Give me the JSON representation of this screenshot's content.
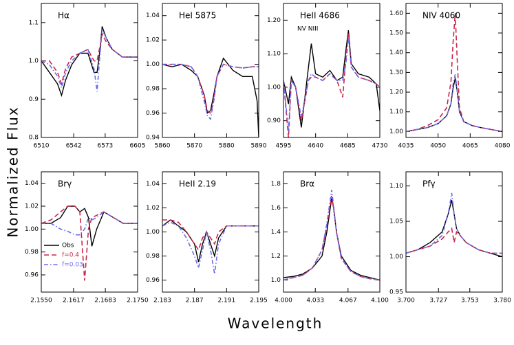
{
  "ylabel": "Normalized Flux",
  "xlabel": "Wavelength",
  "chart_data": [
    {
      "type": "line",
      "title": "Hα",
      "xlim": [
        6510,
        6605
      ],
      "xticks": [
        6510,
        6542,
        6573,
        6605
      ],
      "ylim": [
        0.8,
        1.15
      ],
      "yticks": [
        0.8,
        0.9,
        {
          "value": 1,
          "label": "1.0"
        },
        1.1
      ],
      "x": [
        6510,
        6518,
        6526,
        6530,
        6534,
        6540,
        6548,
        6556,
        6562,
        6565,
        6568,
        6570,
        6574,
        6580,
        6590,
        6605
      ],
      "series": [
        {
          "color": "#000000",
          "dash": "solid",
          "values": [
            1.0,
            0.97,
            0.94,
            0.91,
            0.95,
            0.99,
            1.02,
            1.02,
            0.97,
            0.97,
            1.03,
            1.09,
            1.06,
            1.03,
            1.01,
            1.01
          ]
        },
        {
          "color": "#c8254a",
          "dash": "dashed",
          "values": [
            1.0,
            1.0,
            0.97,
            0.94,
            0.98,
            1.01,
            1.02,
            1.03,
            1.0,
            1.0,
            1.04,
            1.07,
            1.05,
            1.03,
            1.01,
            1.01
          ]
        },
        {
          "color": "#6b6bef",
          "dash": "dashdot",
          "values": [
            1.0,
            0.99,
            0.96,
            0.93,
            0.97,
            1.0,
            1.02,
            1.03,
            0.98,
            0.92,
            1.02,
            1.08,
            1.06,
            1.03,
            1.01,
            1.01
          ]
        }
      ]
    },
    {
      "type": "line",
      "title": "HeI 5875",
      "xlim": [
        5860,
        5890
      ],
      "xticks": [
        5860,
        5870,
        5880,
        5890
      ],
      "ylim": [
        0.94,
        1.05
      ],
      "yticks": [
        0.94,
        0.96,
        0.98,
        {
          "value": 1,
          "label": "1.00"
        },
        1.02,
        1.04
      ],
      "x": [
        5860,
        5863,
        5866,
        5869,
        5871,
        5873,
        5874,
        5875,
        5876,
        5877,
        5879,
        5882,
        5885,
        5888,
        5889.5,
        5890
      ],
      "series": [
        {
          "color": "#000000",
          "dash": "solid",
          "values": [
            1.0,
            0.998,
            1.0,
            0.995,
            0.99,
            0.975,
            0.96,
            0.962,
            0.975,
            0.99,
            1.005,
            0.995,
            0.99,
            0.99,
            0.97,
            0.94
          ]
        },
        {
          "color": "#c8254a",
          "dash": "dashed",
          "values": [
            1.0,
            1.0,
            1.0,
            0.998,
            0.99,
            0.975,
            0.962,
            0.96,
            0.97,
            0.99,
            1.0,
            0.998,
            0.997,
            0.998,
            0.998,
            0.998
          ]
        },
        {
          "color": "#6b6bef",
          "dash": "dashdot",
          "values": [
            1.0,
            1.0,
            1.0,
            0.998,
            0.99,
            0.97,
            0.958,
            0.955,
            0.97,
            0.99,
            1.0,
            0.998,
            0.997,
            0.998,
            0.998,
            0.998
          ]
        }
      ]
    },
    {
      "type": "line",
      "title": "HeII 4686",
      "annotation": "NV NIII",
      "xlim": [
        4595,
        4730
      ],
      "xticks": [
        4595,
        4640,
        4685,
        4730
      ],
      "ylim": [
        0.85,
        1.25
      ],
      "yticks": [
        {
          "value": 0.9,
          "label": "0.90"
        },
        {
          "value": 1,
          "label": "1.00"
        },
        {
          "value": 1.1,
          "label": "1.10"
        },
        {
          "value": 1.2,
          "label": "1.20"
        }
      ],
      "x": [
        4595,
        4602,
        4606,
        4612,
        4620,
        4630,
        4634,
        4640,
        4650,
        4660,
        4670,
        4678,
        4683,
        4686,
        4690,
        4700,
        4715,
        4725,
        4730
      ],
      "series": [
        {
          "color": "#000000",
          "dash": "solid",
          "values": [
            1.02,
            0.95,
            1.03,
            1.0,
            0.88,
            1.06,
            1.13,
            1.04,
            1.03,
            1.05,
            1.02,
            1.03,
            1.12,
            1.17,
            1.07,
            1.04,
            1.03,
            1.01,
            0.93
          ]
        },
        {
          "color": "#c8254a",
          "dash": "dashed",
          "values": [
            1.02,
            0.85,
            1.02,
            1.0,
            0.9,
            1.02,
            1.03,
            1.03,
            1.02,
            1.04,
            1.02,
            0.97,
            1.1,
            1.16,
            1.06,
            1.03,
            1.02,
            1.01,
            1.0
          ]
        },
        {
          "color": "#6b6bef",
          "dash": "dashdot",
          "values": [
            1.02,
            0.87,
            1.02,
            1.0,
            0.91,
            1.02,
            1.04,
            1.03,
            1.02,
            1.04,
            1.02,
            1.02,
            1.08,
            1.15,
            1.06,
            1.03,
            1.02,
            1.01,
            1.0
          ]
        }
      ]
    },
    {
      "type": "line",
      "title": "NIV 4060",
      "xlim": [
        4035,
        4080
      ],
      "xticks": [
        4035,
        4050,
        4065,
        4080
      ],
      "ylim": [
        0.97,
        1.65
      ],
      "yticks": [
        {
          "value": 1,
          "label": "1.00"
        },
        {
          "value": 1.1,
          "label": "1.10"
        },
        {
          "value": 1.2,
          "label": "1.20"
        },
        {
          "value": 1.3,
          "label": "1.30"
        },
        {
          "value": 1.4,
          "label": "1.40"
        },
        {
          "value": 1.5,
          "label": "1.50"
        },
        {
          "value": 1.6,
          "label": "1.60"
        }
      ],
      "x": [
        4035,
        4040,
        4045,
        4050,
        4054,
        4056,
        4057,
        4058,
        4059,
        4060,
        4062,
        4066,
        4070,
        4075,
        4080
      ],
      "series": [
        {
          "color": "#000000",
          "dash": "solid",
          "values": [
            1.0,
            1.01,
            1.02,
            1.04,
            1.08,
            1.14,
            1.22,
            1.27,
            1.2,
            1.1,
            1.05,
            1.03,
            1.02,
            1.01,
            1.0
          ]
        },
        {
          "color": "#c8254a",
          "dash": "dashed",
          "values": [
            1.0,
            1.01,
            1.03,
            1.06,
            1.12,
            1.25,
            1.45,
            1.6,
            1.35,
            1.12,
            1.05,
            1.03,
            1.02,
            1.01,
            1.0
          ]
        },
        {
          "color": "#6b6bef",
          "dash": "dashdot",
          "values": [
            1.0,
            1.01,
            1.02,
            1.04,
            1.08,
            1.14,
            1.24,
            1.29,
            1.2,
            1.1,
            1.05,
            1.03,
            1.02,
            1.01,
            1.0
          ]
        }
      ]
    },
    {
      "type": "line",
      "title": "Brγ",
      "legend": "lower left",
      "xlim": [
        2.155,
        2.175
      ],
      "xticks": [
        {
          "value": 2.155,
          "label": "2.1550"
        },
        2.1617,
        2.1683,
        {
          "value": 2.175,
          "label": "2.1750"
        }
      ],
      "ylim": [
        0.945,
        1.05
      ],
      "yticks": [
        0.96,
        0.98,
        {
          "value": 1,
          "label": "1.00"
        },
        1.02,
        1.04
      ],
      "x": [
        2.155,
        2.157,
        2.159,
        2.1605,
        2.162,
        2.163,
        2.164,
        2.1648,
        2.1655,
        2.1665,
        2.168,
        2.17,
        2.172,
        2.175
      ],
      "series": [
        {
          "name": "Obs",
          "color": "#000000",
          "dash": "solid",
          "values": [
            1.005,
            1.005,
            1.01,
            1.02,
            1.02,
            1.015,
            1.018,
            1.01,
            0.985,
            1.0,
            1.015,
            1.01,
            1.005,
            1.005
          ]
        },
        {
          "name": "f=0.4",
          "color": "#c8254a",
          "dash": "dashed",
          "values": [
            1.005,
            1.008,
            1.015,
            1.02,
            1.02,
            1.015,
            0.955,
            1.0,
            1.01,
            1.012,
            1.015,
            1.01,
            1.005,
            1.005
          ]
        },
        {
          "name": "f=0.03",
          "color": "#6b6bef",
          "dash": "dashdot",
          "values": [
            1.005,
            1.005,
            1.0,
            0.998,
            0.995,
            0.995,
            1.0,
            1.01,
            1.008,
            1.01,
            1.015,
            1.01,
            1.005,
            1.005
          ]
        }
      ]
    },
    {
      "type": "line",
      "title": "HeII 2.19",
      "xlim": [
        2.183,
        2.195
      ],
      "xticks": [
        2.183,
        2.187,
        2.191,
        2.195
      ],
      "ylim": [
        0.95,
        1.05
      ],
      "yticks": [
        0.96,
        0.98,
        {
          "value": 1,
          "label": "1.00"
        },
        1.02,
        1.04
      ],
      "x": [
        2.183,
        2.184,
        2.185,
        2.186,
        2.187,
        2.1875,
        2.188,
        2.1885,
        2.189,
        2.1895,
        2.19,
        2.191,
        2.193,
        2.195
      ],
      "series": [
        {
          "color": "#000000",
          "dash": "solid",
          "values": [
            1.005,
            1.01,
            1.005,
            1.0,
            0.99,
            0.975,
            0.99,
            1.0,
            0.99,
            0.98,
            0.995,
            1.005,
            1.005,
            1.005
          ]
        },
        {
          "color": "#c8254a",
          "dash": "dashed",
          "values": [
            1.01,
            1.01,
            1.008,
            1.0,
            0.99,
            0.985,
            0.995,
            1.0,
            0.995,
            0.99,
            1.0,
            1.005,
            1.005,
            1.005
          ]
        },
        {
          "color": "#6b6bef",
          "dash": "dashdot",
          "values": [
            1.005,
            1.008,
            1.005,
            0.995,
            0.98,
            0.97,
            0.985,
            1.0,
            0.985,
            0.965,
            0.99,
            1.005,
            1.005,
            1.005
          ]
        }
      ]
    },
    {
      "type": "line",
      "title": "Brα",
      "xlim": [
        4.0,
        4.1
      ],
      "xticks": [
        {
          "value": 4.0,
          "label": "4.000"
        },
        4.033,
        4.067,
        {
          "value": 4.1,
          "label": "4.100"
        }
      ],
      "ylim": [
        0.9,
        1.9
      ],
      "yticks": [
        {
          "value": 1,
          "label": "1.0"
        },
        1.2,
        1.4,
        1.6,
        1.8
      ],
      "x": [
        4.0,
        4.01,
        4.02,
        4.03,
        4.04,
        4.045,
        4.05,
        4.052,
        4.055,
        4.06,
        4.07,
        4.08,
        4.09,
        4.1
      ],
      "series": [
        {
          "color": "#000000",
          "dash": "solid",
          "values": [
            1.02,
            1.03,
            1.05,
            1.1,
            1.2,
            1.4,
            1.68,
            1.6,
            1.4,
            1.2,
            1.08,
            1.04,
            1.02,
            1.0
          ]
        },
        {
          "color": "#c8254a",
          "dash": "dashed",
          "values": [
            1.0,
            1.02,
            1.04,
            1.1,
            1.25,
            1.45,
            1.7,
            1.6,
            1.4,
            1.18,
            1.07,
            1.03,
            1.01,
            1.0
          ]
        },
        {
          "color": "#6b6bef",
          "dash": "dashdot",
          "values": [
            1.0,
            1.02,
            1.04,
            1.1,
            1.25,
            1.47,
            1.75,
            1.62,
            1.4,
            1.18,
            1.07,
            1.03,
            1.01,
            1.0
          ]
        }
      ]
    },
    {
      "type": "line",
      "title": "Pfγ",
      "xlim": [
        3.7,
        3.78
      ],
      "xticks": [
        {
          "value": 3.7,
          "label": "3.700"
        },
        3.727,
        3.753,
        {
          "value": 3.78,
          "label": "3.780"
        }
      ],
      "ylim": [
        0.95,
        1.12
      ],
      "yticks": [
        0.95,
        {
          "value": 1,
          "label": "1.00"
        },
        1.05,
        {
          "value": 1.1,
          "label": "1.10"
        }
      ],
      "x": [
        3.7,
        3.71,
        3.72,
        3.73,
        3.735,
        3.738,
        3.74,
        3.742,
        3.745,
        3.75,
        3.76,
        3.77,
        3.78
      ],
      "series": [
        {
          "color": "#000000",
          "dash": "solid",
          "values": [
            1.005,
            1.01,
            1.02,
            1.035,
            1.06,
            1.08,
            1.06,
            1.04,
            1.03,
            1.02,
            1.01,
            1.005,
            1.0
          ]
        },
        {
          "color": "#c8254a",
          "dash": "dashed",
          "values": [
            1.005,
            1.01,
            1.015,
            1.025,
            1.035,
            1.04,
            1.02,
            1.035,
            1.03,
            1.02,
            1.01,
            1.005,
            1.005
          ]
        },
        {
          "color": "#6b6bef",
          "dash": "dashdot",
          "values": [
            1.005,
            1.01,
            1.015,
            1.03,
            1.06,
            1.09,
            1.06,
            1.04,
            1.03,
            1.02,
            1.01,
            1.005,
            1.005
          ]
        }
      ]
    }
  ]
}
